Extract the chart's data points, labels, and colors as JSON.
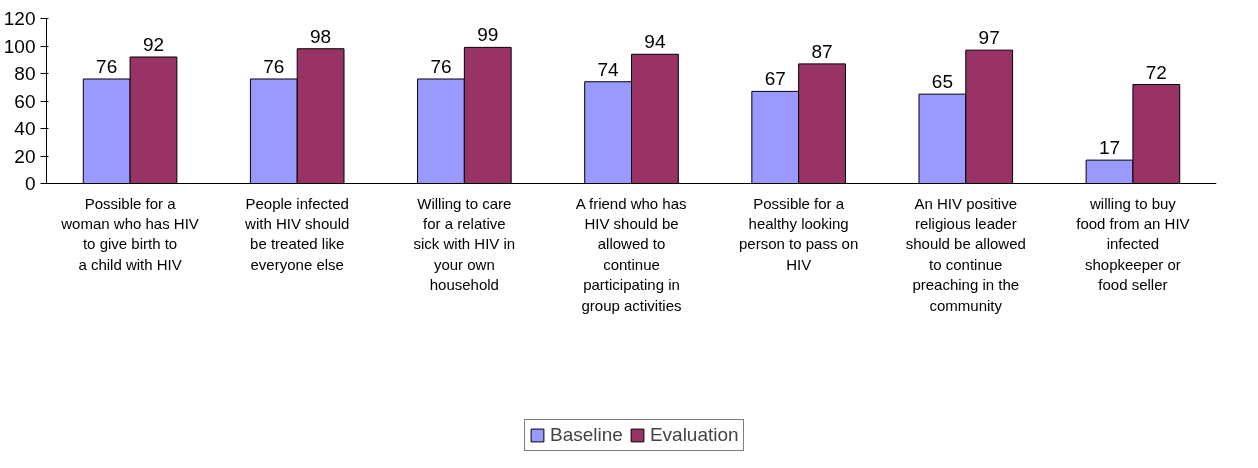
{
  "chart_data": {
    "type": "bar",
    "categories": [
      "Possible for a woman who has HIV to give birth to a child with HIV",
      "People infected with HIV should be treated like everyone else",
      "Willing to care for a relative sick with HIV in your own household",
      "A friend who has HIV should be allowed to continue participating in group activities",
      "Possible for a healthy looking person to pass on HIV",
      "An HIV positive religious leader should be allowed to continue preaching in the community",
      "willing to buy food from an HIV infected shopkeeper or food seller"
    ],
    "series": [
      {
        "name": "Baseline",
        "color": "#9999ff",
        "values": [
          76,
          76,
          76,
          74,
          67,
          65,
          17
        ]
      },
      {
        "name": "Evaluation",
        "color": "#993366",
        "values": [
          92,
          98,
          99,
          94,
          87,
          97,
          72
        ]
      }
    ],
    "ylim": [
      0,
      120
    ],
    "yticks": [
      0,
      20,
      40,
      60,
      80,
      100,
      120
    ],
    "grid": false,
    "legend": "bottom",
    "data_labels": true
  }
}
